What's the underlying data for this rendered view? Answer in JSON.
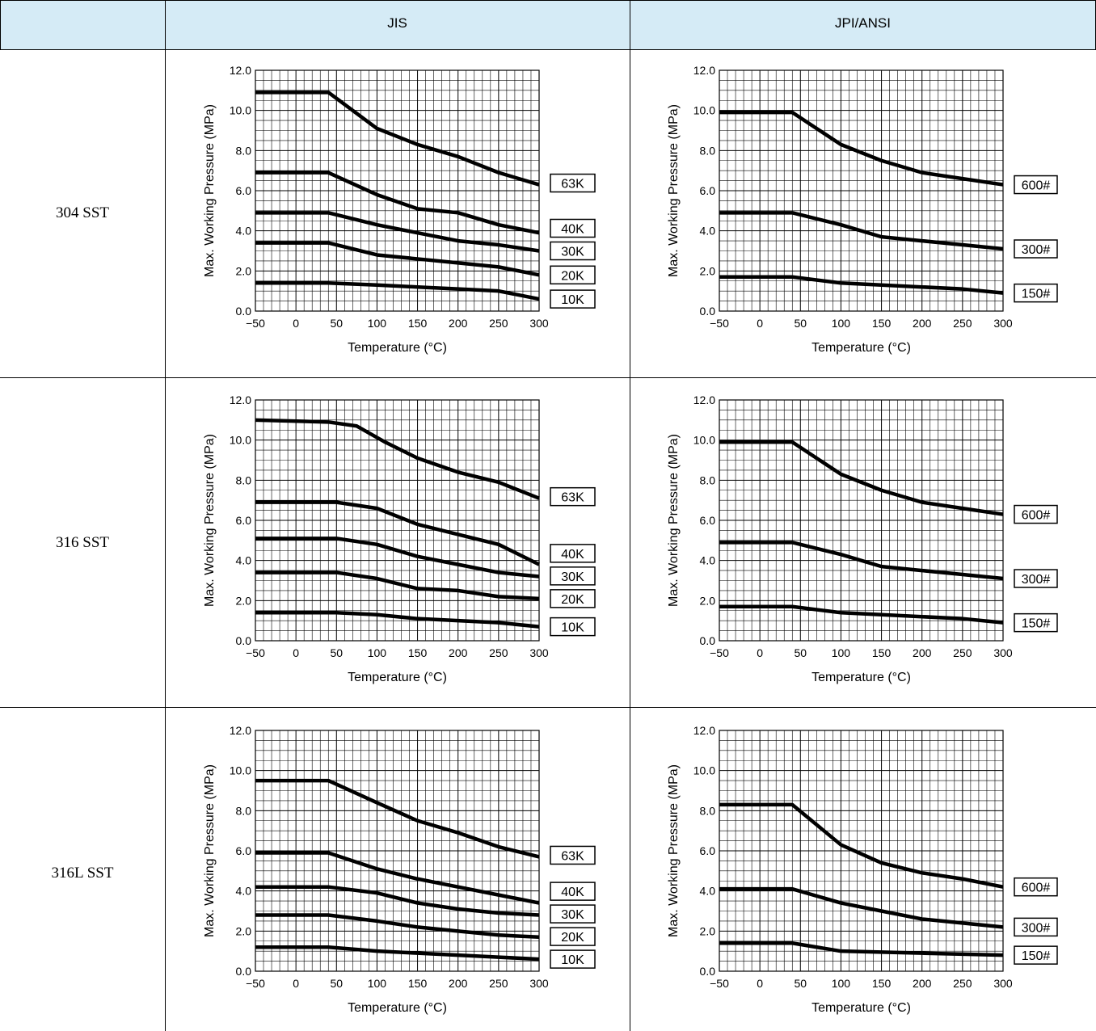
{
  "header": {
    "col1": "JIS",
    "col2": "JPI/ANSI"
  },
  "rows": [
    {
      "label": "304 SST"
    },
    {
      "label": "316 SST"
    },
    {
      "label": "316L SST"
    }
  ],
  "chart_data": [
    {
      "type": "line",
      "material": "304 SST",
      "standard": "JIS",
      "xlabel": "Temperature (°C)",
      "ylabel": "Max. Working Pressure (MPa)",
      "xlim": [
        -50,
        300
      ],
      "ylim": [
        0,
        12
      ],
      "grid": true,
      "xticks": [
        "−50",
        "0",
        "50",
        "100",
        "150",
        "200",
        "250",
        "300"
      ],
      "yticks": [
        "0.0",
        "2.0",
        "4.0",
        "6.0",
        "8.0",
        "10.0",
        "12.0"
      ],
      "series": [
        {
          "name": "63K",
          "points": [
            [
              -50,
              10.9
            ],
            [
              40,
              10.9
            ],
            [
              100,
              9.1
            ],
            [
              150,
              8.3
            ],
            [
              200,
              7.7
            ],
            [
              250,
              6.9
            ],
            [
              300,
              6.3
            ]
          ]
        },
        {
          "name": "40K",
          "points": [
            [
              -50,
              6.9
            ],
            [
              40,
              6.9
            ],
            [
              100,
              5.8
            ],
            [
              150,
              5.1
            ],
            [
              200,
              4.9
            ],
            [
              250,
              4.3
            ],
            [
              300,
              3.9
            ]
          ]
        },
        {
          "name": "30K",
          "points": [
            [
              -50,
              4.9
            ],
            [
              40,
              4.9
            ],
            [
              100,
              4.3
            ],
            [
              150,
              3.9
            ],
            [
              200,
              3.5
            ],
            [
              250,
              3.3
            ],
            [
              300,
              3.0
            ]
          ]
        },
        {
          "name": "20K",
          "points": [
            [
              -50,
              3.4
            ],
            [
              40,
              3.4
            ],
            [
              100,
              2.8
            ],
            [
              150,
              2.6
            ],
            [
              200,
              2.4
            ],
            [
              250,
              2.2
            ],
            [
              300,
              1.8
            ]
          ]
        },
        {
          "name": "10K",
          "points": [
            [
              -50,
              1.4
            ],
            [
              40,
              1.4
            ],
            [
              100,
              1.3
            ],
            [
              150,
              1.2
            ],
            [
              200,
              1.1
            ],
            [
              250,
              1.0
            ],
            [
              300,
              0.6
            ]
          ]
        }
      ]
    },
    {
      "type": "line",
      "material": "304 SST",
      "standard": "JPI/ANSI",
      "xlabel": "Temperature (°C)",
      "ylabel": "Max. Working Pressure (MPa)",
      "xlim": [
        -50,
        300
      ],
      "ylim": [
        0,
        12
      ],
      "grid": true,
      "xticks": [
        "−50",
        "0",
        "50",
        "100",
        "150",
        "200",
        "250",
        "300"
      ],
      "yticks": [
        "0.0",
        "2.0",
        "4.0",
        "6.0",
        "8.0",
        "10.0",
        "12.0"
      ],
      "series": [
        {
          "name": "600#",
          "points": [
            [
              -50,
              9.9
            ],
            [
              40,
              9.9
            ],
            [
              100,
              8.3
            ],
            [
              150,
              7.5
            ],
            [
              200,
              6.9
            ],
            [
              250,
              6.6
            ],
            [
              300,
              6.3
            ]
          ]
        },
        {
          "name": "300#",
          "points": [
            [
              -50,
              4.9
            ],
            [
              40,
              4.9
            ],
            [
              100,
              4.3
            ],
            [
              150,
              3.7
            ],
            [
              200,
              3.5
            ],
            [
              250,
              3.3
            ],
            [
              300,
              3.1
            ]
          ]
        },
        {
          "name": "150#",
          "points": [
            [
              -50,
              1.7
            ],
            [
              40,
              1.7
            ],
            [
              100,
              1.4
            ],
            [
              150,
              1.3
            ],
            [
              200,
              1.2
            ],
            [
              250,
              1.1
            ],
            [
              300,
              0.9
            ]
          ]
        }
      ]
    },
    {
      "type": "line",
      "material": "316 SST",
      "standard": "JIS",
      "xlabel": "Temperature (°C)",
      "ylabel": "Max. Working Pressure (MPa)",
      "xlim": [
        -50,
        300
      ],
      "ylim": [
        0,
        12
      ],
      "grid": true,
      "xticks": [
        "−50",
        "0",
        "50",
        "100",
        "150",
        "200",
        "250",
        "300"
      ],
      "yticks": [
        "0.0",
        "2.0",
        "4.0",
        "6.0",
        "8.0",
        "10.0",
        "12.0"
      ],
      "series": [
        {
          "name": "63K",
          "points": [
            [
              -50,
              11.0
            ],
            [
              40,
              10.9
            ],
            [
              75,
              10.7
            ],
            [
              110,
              9.9
            ],
            [
              150,
              9.1
            ],
            [
              200,
              8.4
            ],
            [
              250,
              7.9
            ],
            [
              300,
              7.1
            ]
          ]
        },
        {
          "name": "40K",
          "points": [
            [
              -50,
              6.9
            ],
            [
              50,
              6.9
            ],
            [
              100,
              6.6
            ],
            [
              150,
              5.8
            ],
            [
              200,
              5.3
            ],
            [
              250,
              4.8
            ],
            [
              300,
              3.8
            ]
          ]
        },
        {
          "name": "30K",
          "points": [
            [
              -50,
              5.1
            ],
            [
              50,
              5.1
            ],
            [
              100,
              4.8
            ],
            [
              150,
              4.2
            ],
            [
              200,
              3.8
            ],
            [
              250,
              3.4
            ],
            [
              300,
              3.2
            ]
          ]
        },
        {
          "name": "20K",
          "points": [
            [
              -50,
              3.4
            ],
            [
              50,
              3.4
            ],
            [
              100,
              3.1
            ],
            [
              150,
              2.6
            ],
            [
              200,
              2.5
            ],
            [
              250,
              2.2
            ],
            [
              300,
              2.1
            ]
          ]
        },
        {
          "name": "10K",
          "points": [
            [
              -50,
              1.4
            ],
            [
              50,
              1.4
            ],
            [
              100,
              1.3
            ],
            [
              150,
              1.1
            ],
            [
              200,
              1.0
            ],
            [
              250,
              0.9
            ],
            [
              300,
              0.7
            ]
          ]
        }
      ]
    },
    {
      "type": "line",
      "material": "316 SST",
      "standard": "JPI/ANSI",
      "xlabel": "Temperature (°C)",
      "ylabel": "Max. Working Pressure (MPa)",
      "xlim": [
        -50,
        300
      ],
      "ylim": [
        0,
        12
      ],
      "grid": true,
      "xticks": [
        "−50",
        "0",
        "50",
        "100",
        "150",
        "200",
        "250",
        "300"
      ],
      "yticks": [
        "0.0",
        "2.0",
        "4.0",
        "6.0",
        "8.0",
        "10.0",
        "12.0"
      ],
      "series": [
        {
          "name": "600#",
          "points": [
            [
              -50,
              9.9
            ],
            [
              40,
              9.9
            ],
            [
              100,
              8.3
            ],
            [
              150,
              7.5
            ],
            [
              200,
              6.9
            ],
            [
              250,
              6.6
            ],
            [
              300,
              6.3
            ]
          ]
        },
        {
          "name": "300#",
          "points": [
            [
              -50,
              4.9
            ],
            [
              40,
              4.9
            ],
            [
              100,
              4.3
            ],
            [
              150,
              3.7
            ],
            [
              200,
              3.5
            ],
            [
              250,
              3.3
            ],
            [
              300,
              3.1
            ]
          ]
        },
        {
          "name": "150#",
          "points": [
            [
              -50,
              1.7
            ],
            [
              40,
              1.7
            ],
            [
              100,
              1.4
            ],
            [
              150,
              1.3
            ],
            [
              200,
              1.2
            ],
            [
              250,
              1.1
            ],
            [
              300,
              0.9
            ]
          ]
        }
      ]
    },
    {
      "type": "line",
      "material": "316L SST",
      "standard": "JIS",
      "xlabel": "Temperature (°C)",
      "ylabel": "Max. Working Pressure (MPa)",
      "xlim": [
        -50,
        300
      ],
      "ylim": [
        0,
        12
      ],
      "grid": true,
      "xticks": [
        "−50",
        "0",
        "50",
        "100",
        "150",
        "200",
        "250",
        "300"
      ],
      "yticks": [
        "0.0",
        "2.0",
        "4.0",
        "6.0",
        "8.0",
        "10.0",
        "12.0"
      ],
      "series": [
        {
          "name": "63K",
          "points": [
            [
              -50,
              9.5
            ],
            [
              40,
              9.5
            ],
            [
              100,
              8.4
            ],
            [
              150,
              7.5
            ],
            [
              200,
              6.9
            ],
            [
              250,
              6.2
            ],
            [
              300,
              5.7
            ]
          ]
        },
        {
          "name": "40K",
          "points": [
            [
              -50,
              5.9
            ],
            [
              40,
              5.9
            ],
            [
              100,
              5.1
            ],
            [
              150,
              4.6
            ],
            [
              200,
              4.2
            ],
            [
              250,
              3.8
            ],
            [
              300,
              3.4
            ]
          ]
        },
        {
          "name": "30K",
          "points": [
            [
              -50,
              4.2
            ],
            [
              40,
              4.2
            ],
            [
              100,
              3.9
            ],
            [
              150,
              3.4
            ],
            [
              200,
              3.1
            ],
            [
              250,
              2.9
            ],
            [
              300,
              2.8
            ]
          ]
        },
        {
          "name": "20K",
          "points": [
            [
              -50,
              2.8
            ],
            [
              40,
              2.8
            ],
            [
              100,
              2.5
            ],
            [
              150,
              2.2
            ],
            [
              200,
              2.0
            ],
            [
              250,
              1.8
            ],
            [
              300,
              1.7
            ]
          ]
        },
        {
          "name": "10K",
          "points": [
            [
              -50,
              1.2
            ],
            [
              40,
              1.2
            ],
            [
              100,
              1.0
            ],
            [
              150,
              0.9
            ],
            [
              200,
              0.8
            ],
            [
              250,
              0.7
            ],
            [
              300,
              0.6
            ]
          ]
        }
      ]
    },
    {
      "type": "line",
      "material": "316L SST",
      "standard": "JPI/ANSI",
      "xlabel": "Temperature (°C)",
      "ylabel": "Max. Working Pressure (MPa)",
      "xlim": [
        -50,
        300
      ],
      "ylim": [
        0,
        12
      ],
      "grid": true,
      "xticks": [
        "−50",
        "0",
        "50",
        "100",
        "150",
        "200",
        "250",
        "300"
      ],
      "yticks": [
        "0.0",
        "2.0",
        "4.0",
        "6.0",
        "8.0",
        "10.0",
        "12.0"
      ],
      "series": [
        {
          "name": "600#",
          "points": [
            [
              -50,
              8.3
            ],
            [
              40,
              8.3
            ],
            [
              100,
              6.3
            ],
            [
              150,
              5.4
            ],
            [
              200,
              4.9
            ],
            [
              250,
              4.6
            ],
            [
              300,
              4.2
            ]
          ]
        },
        {
          "name": "300#",
          "points": [
            [
              -50,
              4.1
            ],
            [
              40,
              4.1
            ],
            [
              100,
              3.4
            ],
            [
              150,
              3.0
            ],
            [
              200,
              2.6
            ],
            [
              250,
              2.4
            ],
            [
              300,
              2.2
            ]
          ]
        },
        {
          "name": "150#",
          "points": [
            [
              -50,
              1.4
            ],
            [
              40,
              1.4
            ],
            [
              100,
              1.0
            ],
            [
              150,
              0.95
            ],
            [
              200,
              0.9
            ],
            [
              250,
              0.85
            ],
            [
              300,
              0.8
            ]
          ]
        }
      ]
    }
  ]
}
